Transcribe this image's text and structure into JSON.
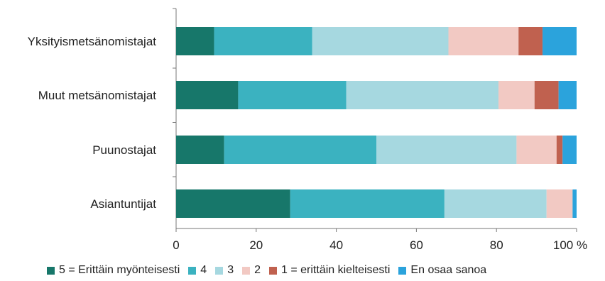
{
  "chart_data": {
    "type": "bar",
    "orientation": "horizontal",
    "stacked": "percent",
    "categories": [
      "Yksityismetsänomistajat",
      "Muut metsänomistajat",
      "Puunostajat",
      "Asiantuntijat"
    ],
    "series": [
      {
        "name": "5 = Erittäin myönteisesti",
        "color": "#17776a",
        "values": [
          9.5,
          15.5,
          12,
          28.5
        ]
      },
      {
        "name": "4",
        "color": "#3bb2c0",
        "values": [
          24.5,
          27,
          38,
          38.5
        ]
      },
      {
        "name": "3",
        "color": "#a6d8e0",
        "values": [
          34,
          38,
          35,
          25.5
        ]
      },
      {
        "name": "2",
        "color": "#f2c9c3",
        "values": [
          17.5,
          9,
          10,
          6.5
        ]
      },
      {
        "name": "1 = erittäin kielteisesti",
        "color": "#c0614f",
        "values": [
          6,
          6,
          1.5,
          0
        ]
      },
      {
        "name": "En osaa sanoa",
        "color": "#2ba3dc",
        "values": [
          8.5,
          4.5,
          3.5,
          1
        ]
      }
    ],
    "xlim": [
      0,
      100
    ],
    "xticks": [
      "0",
      "20",
      "40",
      "60",
      "80",
      "100 %"
    ],
    "grid": false,
    "legend_position": "bottom"
  }
}
